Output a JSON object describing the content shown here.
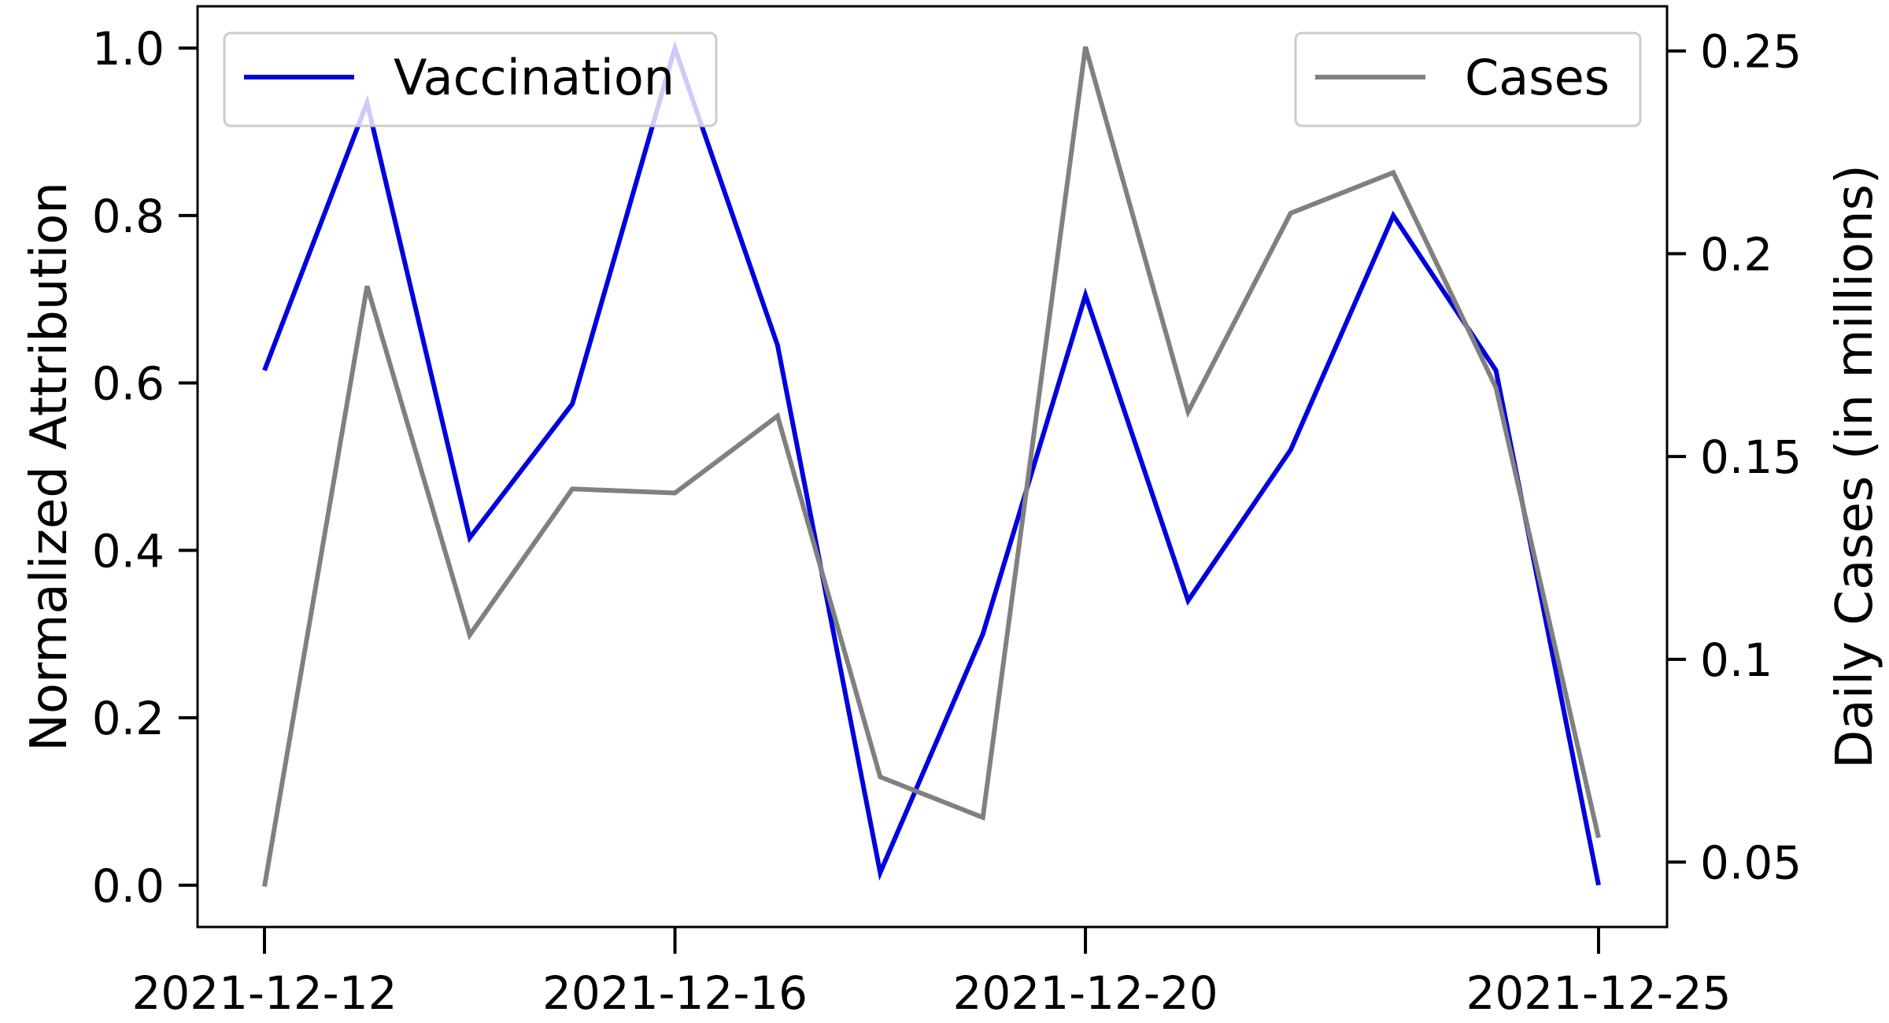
{
  "chart_data": {
    "type": "line",
    "x_dates": [
      "2021-12-12",
      "2021-12-13",
      "2021-12-14",
      "2021-12-15",
      "2021-12-16",
      "2021-12-17",
      "2021-12-18",
      "2021-12-19",
      "2021-12-20",
      "2021-12-21",
      "2021-12-22",
      "2021-12-23",
      "2021-12-24",
      "2021-12-25"
    ],
    "series": [
      {
        "name": "Vaccination",
        "axis": "left",
        "color": "#0000dd",
        "values": [
          0.615,
          0.935,
          0.415,
          0.575,
          1.0,
          0.645,
          0.015,
          0.3,
          0.705,
          0.34,
          0.52,
          0.8,
          0.615,
          0.0
        ]
      },
      {
        "name": "Cases",
        "axis": "right",
        "color": "#808080",
        "values": [
          0.044,
          0.192,
          0.106,
          0.142,
          0.141,
          0.16,
          0.071,
          0.061,
          0.251,
          0.161,
          0.21,
          0.22,
          0.167,
          0.056
        ]
      }
    ],
    "x_ticks": [
      "2021-12-12",
      "2021-12-16",
      "2021-12-20",
      "2021-12-25"
    ],
    "x_tick_positions": [
      "2021-12-12",
      "2021-12-16",
      "2021-12-20",
      "2021-12-25"
    ],
    "ylabel_left": "Normalized Attribution",
    "ylabel_right": "Daily Cases (in millions)",
    "ylim_left": [
      -0.05,
      1.05
    ],
    "ylim_right": [
      0.034,
      0.261
    ],
    "y_ticks_left": [
      0.0,
      0.2,
      0.4,
      0.6,
      0.8,
      1.0
    ],
    "y_tick_labels_left": [
      "0.0",
      "0.2",
      "0.4",
      "0.6",
      "0.8",
      "1.0"
    ],
    "y_ticks_right": [
      0.05,
      0.1,
      0.15,
      0.2,
      0.25
    ],
    "y_tick_labels_right": [
      "0.05",
      "0.1",
      "0.15",
      "0.2",
      "0.25"
    ],
    "legends": [
      {
        "position": "top-left",
        "label": "Vaccination",
        "color": "#0000dd"
      },
      {
        "position": "top-right",
        "label": "Cases",
        "color": "#808080"
      }
    ],
    "grid": false
  }
}
